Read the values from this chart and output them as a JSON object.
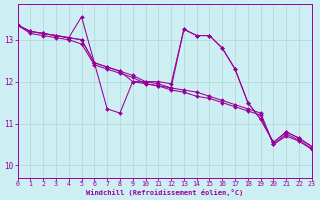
{
  "xlabel": "Windchill (Refroidissement éolien,°C)",
  "bg_color": "#cdeef2",
  "line_color": "#990099",
  "grid_color": "#b0d8d0",
  "xlim": [
    0,
    23
  ],
  "ylim": [
    9.7,
    13.85
  ],
  "yticks": [
    10,
    11,
    12,
    13
  ],
  "xticks": [
    0,
    1,
    2,
    3,
    4,
    5,
    6,
    7,
    8,
    9,
    10,
    11,
    12,
    13,
    14,
    15,
    16,
    17,
    18,
    19,
    20,
    21,
    22,
    23
  ],
  "series": [
    [
      13.35,
      13.2,
      13.15,
      13.1,
      13.05,
      13.55,
      12.45,
      11.35,
      11.25,
      12.0,
      12.0,
      12.0,
      11.95,
      13.25,
      13.1,
      13.1,
      12.8,
      12.3,
      11.5,
      11.1,
      10.55,
      10.8,
      10.65,
      10.45
    ],
    [
      13.35,
      13.2,
      13.15,
      13.1,
      13.05,
      13.0,
      12.45,
      12.35,
      12.25,
      12.0,
      11.95,
      11.9,
      11.85,
      13.25,
      13.1,
      13.1,
      12.8,
      12.3,
      11.5,
      11.1,
      10.55,
      10.8,
      10.65,
      10.45
    ],
    [
      13.35,
      13.2,
      13.15,
      13.1,
      13.05,
      13.0,
      12.45,
      12.35,
      12.25,
      12.15,
      12.0,
      11.95,
      11.85,
      11.8,
      11.75,
      11.65,
      11.55,
      11.45,
      11.35,
      11.25,
      10.5,
      10.75,
      10.6,
      10.4
    ],
    [
      13.35,
      13.15,
      13.1,
      13.05,
      13.0,
      12.9,
      12.4,
      12.3,
      12.2,
      12.1,
      11.95,
      11.9,
      11.8,
      11.75,
      11.65,
      11.6,
      11.5,
      11.4,
      11.3,
      11.2,
      10.5,
      10.7,
      10.58,
      10.38
    ]
  ]
}
